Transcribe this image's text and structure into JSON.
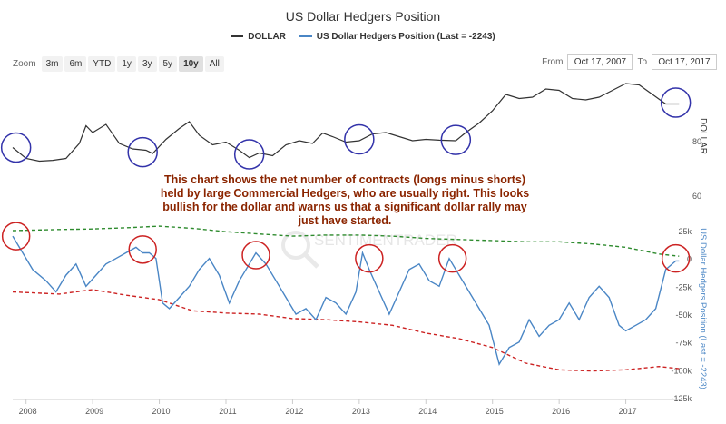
{
  "title": "US Dollar Hedgers Position",
  "legend": [
    {
      "name": "DOLLAR",
      "color": "#333333"
    },
    {
      "name": "US Dollar Hedgers Position (Last = -2243)",
      "color": "#4a86c5"
    }
  ],
  "zoom": {
    "label": "Zoom",
    "buttons": [
      "3m",
      "6m",
      "YTD",
      "1y",
      "3y",
      "5y",
      "10y",
      "All"
    ],
    "active": "10y"
  },
  "range": {
    "from_label": "From",
    "from_value": "Oct 17, 2007",
    "to_label": "To",
    "to_value": "Oct 17, 2017"
  },
  "annotation": "This chart shows the net number of contracts (longs minus shorts) held by large Commercial Hedgers, who are usually right. This looks bullish for the dollar and warns us that a significant dollar rally may just have started.",
  "watermark": "SENTIMENTRADER",
  "colors": {
    "dollar": "#333333",
    "hedgers": "#4a86c5",
    "upper_band": "#2e8b2e",
    "lower_band": "#cc2222",
    "circle_top": "#3333aa",
    "circle_bottom": "#cc2222"
  },
  "chart_data": [
    {
      "type": "line",
      "series": [
        {
          "name": "DOLLAR",
          "x": [
            2007.8,
            2008.0,
            2008.2,
            2008.4,
            2008.6,
            2008.8,
            2008.9,
            2009.0,
            2009.2,
            2009.4,
            2009.6,
            2009.8,
            2009.9,
            2010.1,
            2010.3,
            2010.45,
            2010.6,
            2010.8,
            2011.0,
            2011.2,
            2011.35,
            2011.5,
            2011.7,
            2011.9,
            2012.1,
            2012.3,
            2012.45,
            2012.6,
            2012.8,
            2013.0,
            2013.2,
            2013.4,
            2013.6,
            2013.8,
            2014.0,
            2014.2,
            2014.45,
            2014.6,
            2014.8,
            2015.0,
            2015.2,
            2015.4,
            2015.6,
            2015.8,
            2016.0,
            2016.2,
            2016.4,
            2016.6,
            2016.8,
            2017.0,
            2017.2,
            2017.4,
            2017.6,
            2017.8
          ],
          "values": [
            77.5,
            73.5,
            72.5,
            72.8,
            73.5,
            79,
            85.5,
            83,
            86,
            79,
            77,
            76.5,
            75.3,
            80.5,
            84.5,
            87,
            82,
            78.5,
            79.5,
            76.5,
            73.8,
            75.5,
            74.5,
            78.5,
            80,
            79,
            82.8,
            81.5,
            79.5,
            80,
            82.5,
            83,
            81.5,
            80,
            80.5,
            80.2,
            80,
            83,
            86.5,
            91,
            97,
            95.5,
            96,
            99,
            98.5,
            95.5,
            95,
            96,
            98.5,
            101,
            100.5,
            97,
            93.5,
            93.5
          ]
        }
      ],
      "axis": {
        "label": "DOLLAR",
        "ticks": [
          "80",
          "60"
        ],
        "ylim": [
          55,
          105
        ]
      }
    },
    {
      "type": "line",
      "x_ticks": [
        "2008",
        "2009",
        "2010",
        "2011",
        "2012",
        "2013",
        "2014",
        "2015",
        "2016",
        "2017"
      ],
      "axis": {
        "label": "US Dollar Hedgers Position (Last = -2243)",
        "ticks": [
          "25k",
          "0",
          "-25k",
          "-50k",
          "-75k",
          "-100k",
          "-125k"
        ],
        "ylim": [
          -125000,
          25000
        ]
      },
      "series": [
        {
          "name": "US Dollar Hedgers Position (Last = -2243)",
          "x": [
            2007.8,
            2007.95,
            2008.1,
            2008.3,
            2008.45,
            2008.6,
            2008.75,
            2008.9,
            2009.05,
            2009.2,
            2009.35,
            2009.5,
            2009.65,
            2009.75,
            2009.85,
            2009.95,
            2010.05,
            2010.15,
            2010.3,
            2010.45,
            2010.6,
            2010.75,
            2010.9,
            2011.05,
            2011.2,
            2011.35,
            2011.45,
            2011.6,
            2011.75,
            2011.9,
            2012.05,
            2012.2,
            2012.35,
            2012.5,
            2012.65,
            2012.8,
            2012.95,
            2013.05,
            2013.15,
            2013.3,
            2013.45,
            2013.6,
            2013.75,
            2013.9,
            2014.05,
            2014.2,
            2014.35,
            2014.5,
            2014.65,
            2014.8,
            2014.95,
            2015.1,
            2015.25,
            2015.4,
            2015.55,
            2015.7,
            2015.85,
            2016.0,
            2016.15,
            2016.3,
            2016.45,
            2016.6,
            2016.75,
            2016.9,
            2017.0,
            2017.15,
            2017.3,
            2017.45,
            2017.6,
            2017.75,
            2017.8
          ],
          "values": [
            20000,
            5000,
            -10000,
            -20000,
            -30000,
            -15000,
            -5000,
            -25000,
            -15000,
            -5000,
            0,
            5000,
            10000,
            5000,
            5000,
            0,
            -40000,
            -45000,
            -35000,
            -25000,
            -10000,
            0,
            -15000,
            -40000,
            -20000,
            -5000,
            5000,
            -5000,
            -20000,
            -35000,
            -50000,
            -45000,
            -55000,
            -35000,
            -40000,
            -50000,
            -30000,
            5000,
            -10000,
            -30000,
            -50000,
            -30000,
            -10000,
            -5000,
            -20000,
            -25000,
            0,
            -15000,
            -30000,
            -45000,
            -60000,
            -95000,
            -80000,
            -75000,
            -55000,
            -70000,
            -60000,
            -55000,
            -40000,
            -55000,
            -35000,
            -25000,
            -35000,
            -60000,
            -65000,
            -60000,
            -55000,
            -45000,
            -10000,
            -2243,
            -2243
          ]
        },
        {
          "name": "",
          "x": [
            2007.8,
            2008.5,
            2009.0,
            2009.5,
            2010.0,
            2010.5,
            2011.0,
            2011.5,
            2012.0,
            2012.5,
            2013.0,
            2013.5,
            2014.0,
            2014.5,
            2015.0,
            2015.5,
            2016.0,
            2016.5,
            2017.0,
            2017.5,
            2017.8
          ],
          "values": [
            25000,
            26000,
            26500,
            27500,
            29000,
            27000,
            24000,
            22000,
            20000,
            21000,
            21000,
            20000,
            18000,
            17000,
            16000,
            15000,
            15000,
            13000,
            10000,
            4000,
            2000
          ]
        },
        {
          "name": "",
          "x": [
            2007.8,
            2008.5,
            2009.0,
            2009.5,
            2010.0,
            2010.5,
            2011.0,
            2011.5,
            2012.0,
            2012.5,
            2013.0,
            2013.5,
            2014.0,
            2014.5,
            2015.0,
            2015.5,
            2016.0,
            2016.5,
            2017.0,
            2017.5,
            2017.8
          ],
          "values": [
            -30000,
            -32000,
            -28000,
            -33000,
            -37000,
            -47000,
            -49000,
            -50000,
            -54000,
            -55000,
            -57000,
            -60000,
            -67000,
            -72000,
            -80000,
            -94000,
            -100000,
            -101000,
            -100000,
            -97000,
            -99000
          ]
        }
      ]
    }
  ]
}
